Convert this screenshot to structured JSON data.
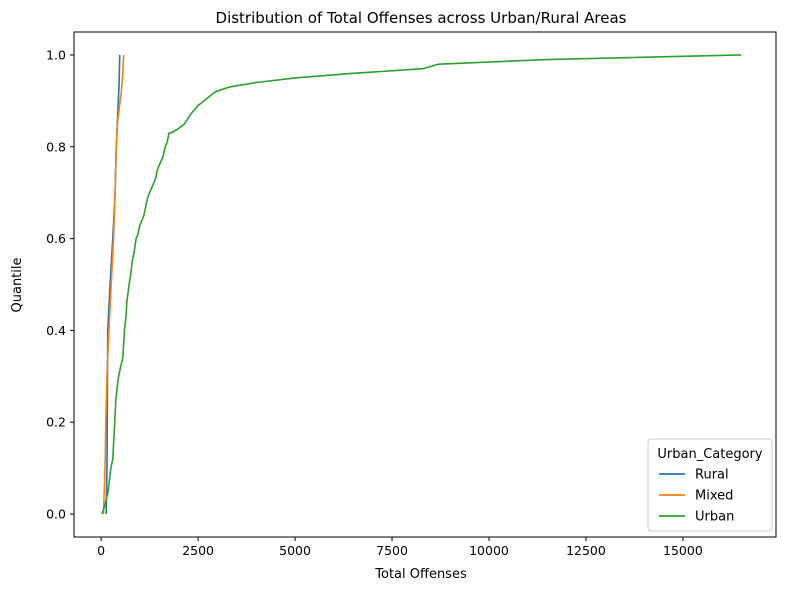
{
  "chart_data": {
    "type": "line",
    "title": "Distribution of Total Offenses across Urban/Rural Areas",
    "xlabel": "Total Offenses",
    "ylabel": "Quantile",
    "xlim": [
      -700,
      17400
    ],
    "ylim": [
      -0.05,
      1.05
    ],
    "xticks": [
      0,
      2500,
      5000,
      7500,
      10000,
      12500,
      15000
    ],
    "xtick_labels": [
      "0",
      "2500",
      "5000",
      "7500",
      "10000",
      "12500",
      "15000"
    ],
    "yticks": [
      0.0,
      0.2,
      0.4,
      0.6,
      0.8,
      1.0
    ],
    "ytick_labels": [
      "0.0",
      "0.2",
      "0.4",
      "0.6",
      "0.8",
      "1.0"
    ],
    "grid": false,
    "legend": {
      "title": "Urban_Category",
      "placement": "lower-right"
    },
    "series": [
      {
        "name": "Rural",
        "color": "#1f77b4",
        "x": [
          130,
          150,
          170,
          230,
          300,
          360,
          390,
          420,
          460,
          480
        ],
        "y": [
          0.0,
          0.1,
          0.4,
          0.5,
          0.6,
          0.7,
          0.8,
          0.86,
          0.93,
          1.0
        ]
      },
      {
        "name": "Mixed",
        "color": "#ff7f0e",
        "x": [
          60,
          100,
          120,
          150,
          200,
          260,
          320,
          360,
          390,
          420,
          460,
          520,
          550,
          580
        ],
        "y": [
          0.0,
          0.1,
          0.2,
          0.3,
          0.4,
          0.5,
          0.6,
          0.7,
          0.8,
          0.85,
          0.88,
          0.92,
          0.95,
          1.0
        ]
      },
      {
        "name": "Urban",
        "color": "#2ca02c",
        "x": [
          20,
          100,
          180,
          250,
          300,
          350,
          380,
          420,
          450,
          500,
          560,
          600,
          640,
          660,
          690,
          720,
          760,
          800,
          850,
          900,
          950,
          1000,
          1100,
          1200,
          1250,
          1300,
          1400,
          1450,
          1500,
          1550,
          1600,
          1650,
          1700,
          1750,
          1800,
          2000,
          2150,
          2300,
          2500,
          2800,
          2950,
          3300,
          4000,
          5000,
          6500,
          8300,
          8700,
          11500,
          16500
        ],
        "y": [
          0.0,
          0.02,
          0.05,
          0.1,
          0.12,
          0.2,
          0.25,
          0.28,
          0.3,
          0.32,
          0.34,
          0.4,
          0.43,
          0.46,
          0.48,
          0.5,
          0.52,
          0.55,
          0.57,
          0.6,
          0.61,
          0.63,
          0.65,
          0.69,
          0.7,
          0.71,
          0.73,
          0.75,
          0.76,
          0.77,
          0.78,
          0.8,
          0.81,
          0.83,
          0.83,
          0.84,
          0.85,
          0.87,
          0.89,
          0.91,
          0.92,
          0.93,
          0.94,
          0.95,
          0.96,
          0.97,
          0.98,
          0.99,
          1.0
        ]
      }
    ]
  }
}
